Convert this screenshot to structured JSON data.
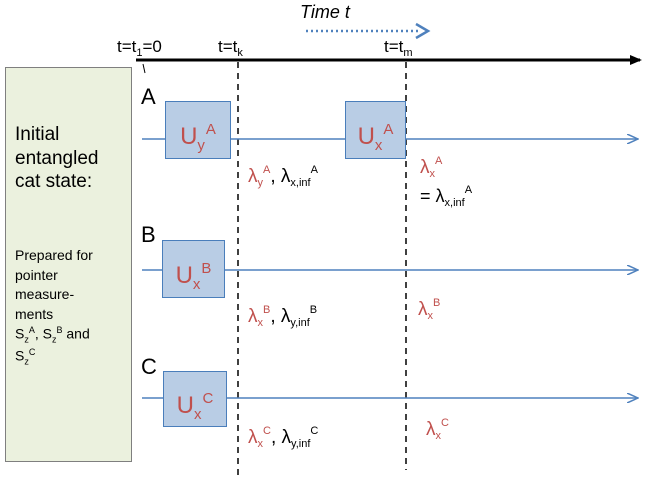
{
  "timeline": {
    "title": "Time t",
    "t1": {
      "prefix": "t=t",
      "sub": "1",
      "suffix": "=0"
    },
    "tk": {
      "prefix": "t=t",
      "sub": "k"
    },
    "tm": {
      "prefix": "t=t",
      "sub": "m"
    }
  },
  "panel": {
    "main_lines": [
      "Initial",
      "entangled",
      "cat state:"
    ],
    "prep_lines": [
      "Prepared for",
      "pointer",
      "measure-",
      "ments"
    ],
    "ops": {
      "s1": "S",
      "z1": "z",
      "A": "A",
      "s2": "S",
      "z2": "z",
      "B": "B",
      "and": " and",
      "s3": "S",
      "z3": "z",
      "C": "C"
    }
  },
  "parties": [
    {
      "label": "A",
      "unitaries": [
        {
          "base": "U",
          "sub": "y",
          "sup": "A"
        },
        {
          "base": "U",
          "sub": "x",
          "sup": "A"
        }
      ],
      "after_tk": {
        "l1": "λ",
        "l1sub": "y",
        "l1sup": "A",
        "sep": ", ",
        "l2": "λ",
        "l2sub": "x,inf",
        "l2sup": "A"
      },
      "after_tm": {
        "l1": "λ",
        "l1sub": "x",
        "l1sup": "A",
        "eq": "= λ",
        "eqsub": "x,inf",
        "eqsup": "A"
      }
    },
    {
      "label": "B",
      "unitaries": [
        {
          "base": "U",
          "sub": "x",
          "sup": "B"
        }
      ],
      "after_tk": {
        "l1": "λ",
        "l1sub": "x",
        "l1sup": "B",
        "sep": ", ",
        "l2": "λ",
        "l2sub": "y,inf",
        "l2sup": "B"
      },
      "after_tm": {
        "l1": "λ",
        "l1sub": "x",
        "l1sup": "B"
      }
    },
    {
      "label": "C",
      "unitaries": [
        {
          "base": "U",
          "sub": "x",
          "sup": "C"
        }
      ],
      "after_tk": {
        "l1": "λ",
        "l1sub": "x",
        "l1sup": "C",
        "sep": ", ",
        "l2": "λ",
        "l2sub": "y,inf",
        "l2sup": "C"
      },
      "after_tm": {
        "l1": "λ",
        "l1sub": "x",
        "l1sup": "C"
      }
    }
  ],
  "colors": {
    "axis": "#000000",
    "wire": "#4f81bd",
    "box_fill": "#b9cde5",
    "box_border": "#4a7ebb",
    "red_text": "#c0504d",
    "panel_fill": "#ebf1de"
  }
}
